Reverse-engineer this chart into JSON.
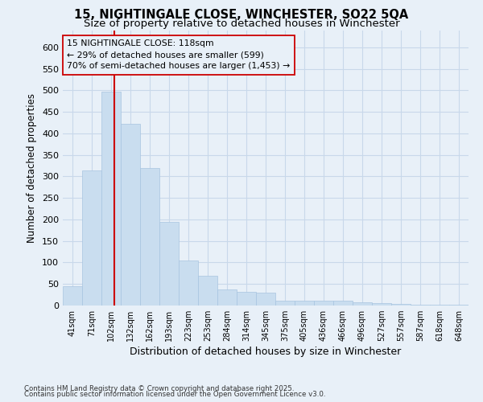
{
  "title_line1": "15, NIGHTINGALE CLOSE, WINCHESTER, SO22 5QA",
  "title_line2": "Size of property relative to detached houses in Winchester",
  "xlabel": "Distribution of detached houses by size in Winchester",
  "ylabel": "Number of detached properties",
  "categories": [
    "41sqm",
    "71sqm",
    "102sqm",
    "132sqm",
    "162sqm",
    "193sqm",
    "223sqm",
    "253sqm",
    "284sqm",
    "314sqm",
    "345sqm",
    "375sqm",
    "405sqm",
    "436sqm",
    "466sqm",
    "496sqm",
    "527sqm",
    "557sqm",
    "587sqm",
    "618sqm",
    "648sqm"
  ],
  "values": [
    45,
    313,
    497,
    423,
    320,
    195,
    105,
    70,
    37,
    32,
    30,
    12,
    11,
    12,
    11,
    8,
    5,
    3,
    2,
    1,
    1
  ],
  "bar_color": "#c9ddef",
  "bar_edgecolor": "#a8c4e0",
  "grid_color": "#c8d8ea",
  "background_color": "#e8f0f8",
  "vline_x": 2.15,
  "vline_color": "#cc0000",
  "annotation_text": "15 NIGHTINGALE CLOSE: 118sqm\n← 29% of detached houses are smaller (599)\n70% of semi-detached houses are larger (1,453) →",
  "annotation_box_edgecolor": "#cc0000",
  "ylim": [
    0,
    640
  ],
  "yticks": [
    0,
    50,
    100,
    150,
    200,
    250,
    300,
    350,
    400,
    450,
    500,
    550,
    600
  ],
  "footnote1": "Contains HM Land Registry data © Crown copyright and database right 2025.",
  "footnote2": "Contains public sector information licensed under the Open Government Licence v3.0.",
  "title_fontsize": 10.5,
  "subtitle_fontsize": 9.5
}
